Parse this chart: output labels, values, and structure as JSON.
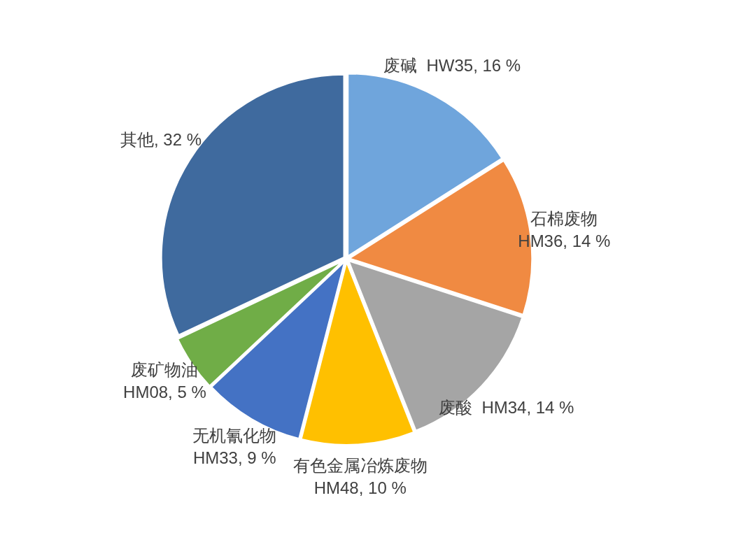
{
  "chart_data": {
    "type": "pie",
    "categories": [
      "废碱  HW35",
      "石棉废物 HM36",
      "废酸  HM34",
      "有色金属冶炼废物 HM48",
      "无机氰化物 HM33",
      "废矿物油 HM08",
      "其他"
    ],
    "values": [
      16,
      14,
      14,
      10,
      9,
      5,
      32
    ],
    "value_labels": [
      "16 %",
      "14 %",
      "14 %",
      "10 %",
      "9 %",
      "5 %",
      "32 %"
    ],
    "colors": [
      "#6fa5dc",
      "#f08a42",
      "#a5a5a5",
      "#ffc000",
      "#4472c4",
      "#70ad47",
      "#3f6a9e"
    ],
    "legend": false
  }
}
